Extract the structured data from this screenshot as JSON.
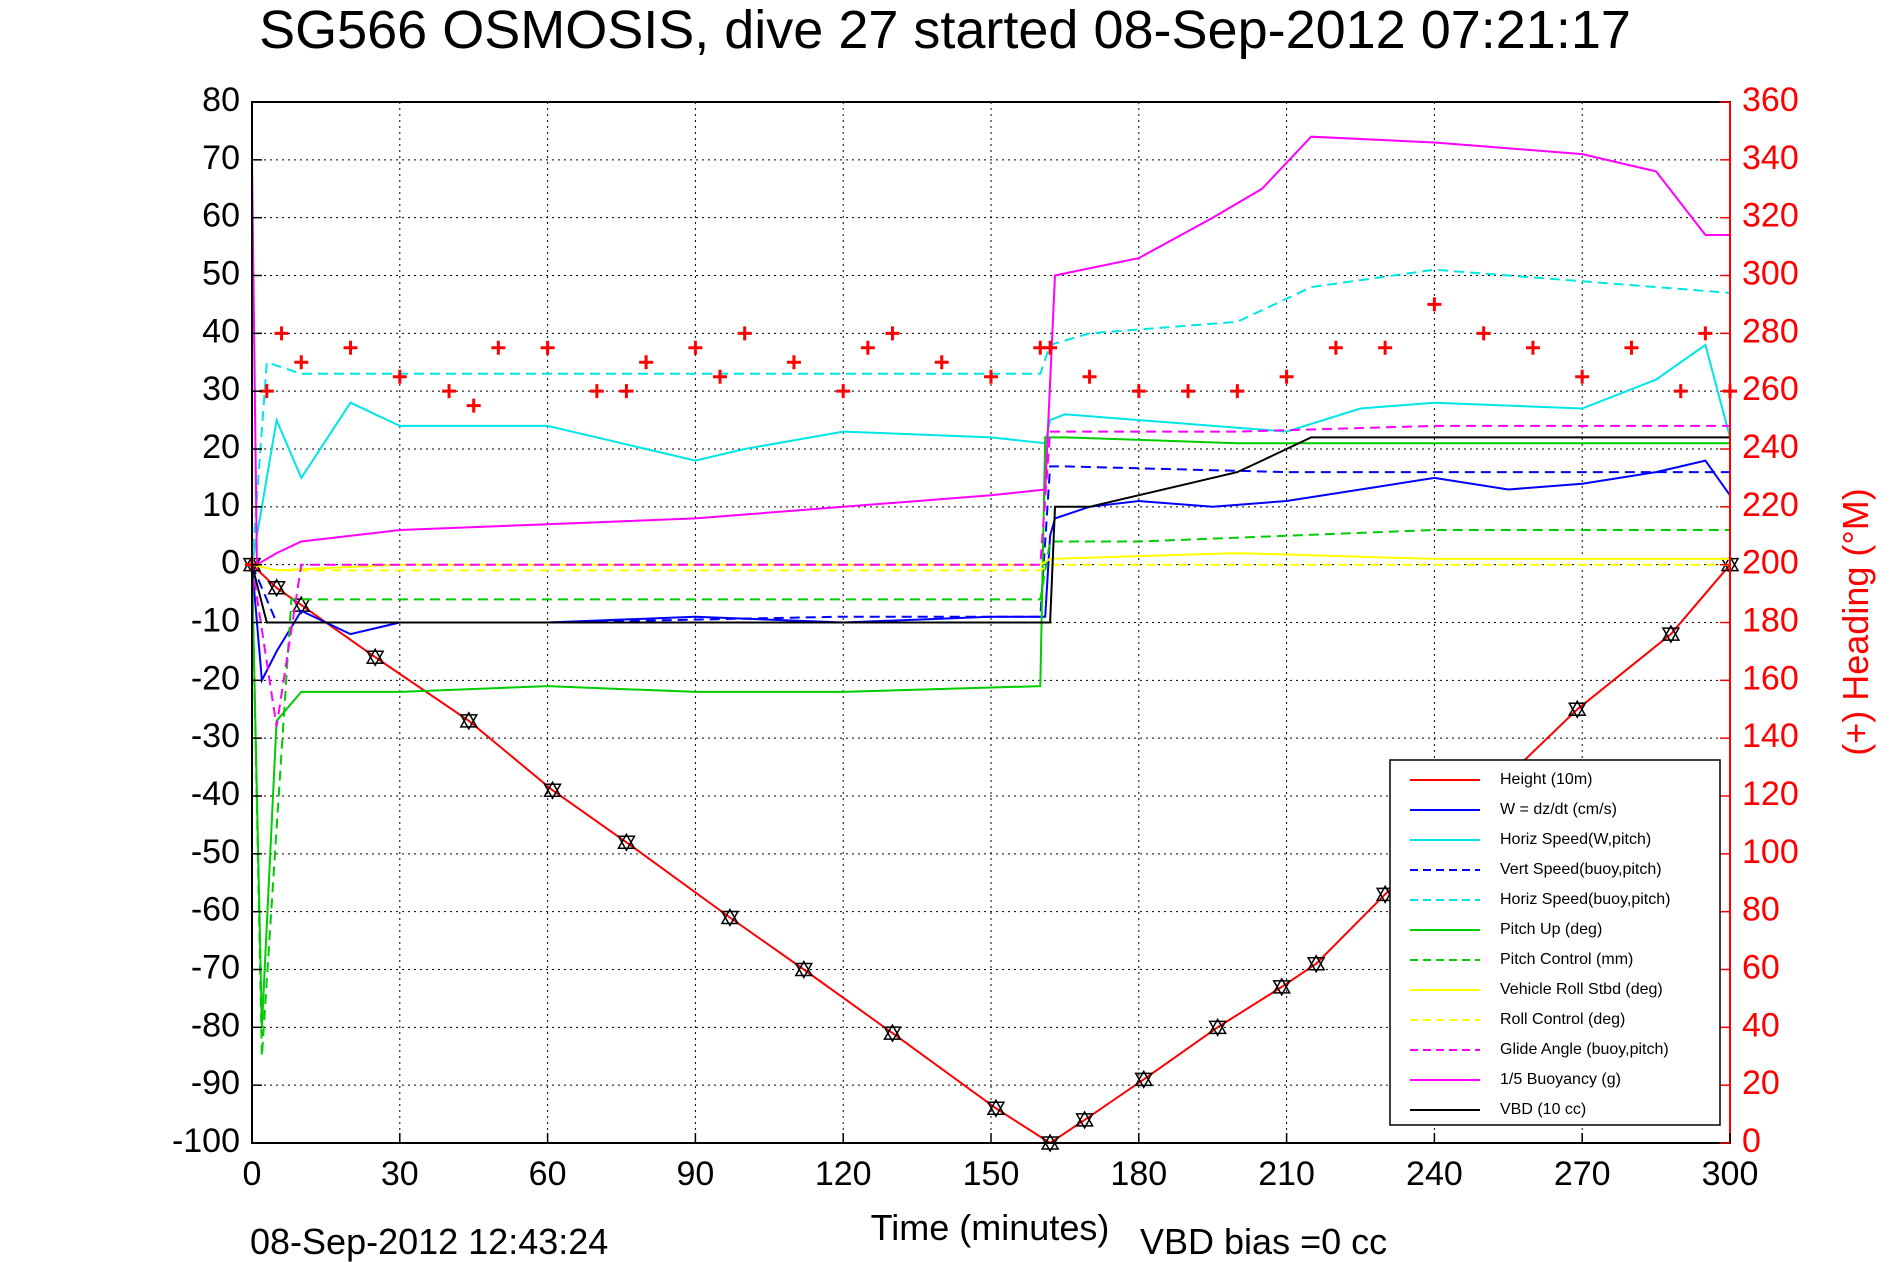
{
  "chart_data": {
    "type": "line",
    "title": "SG566 OSMOSIS, dive 27 started 08-Sep-2012 07:21:17",
    "xlabel": "Time (minutes)",
    "ylabel": "",
    "y2label": "(+) Heading (°M)",
    "xlim": [
      0,
      300
    ],
    "ylim": [
      -100,
      80
    ],
    "y2lim": [
      0,
      360
    ],
    "x_ticks": [
      "0",
      "30",
      "60",
      "90",
      "120",
      "150",
      "180",
      "210",
      "240",
      "270",
      "300"
    ],
    "y_ticks": [
      "80",
      "70",
      "60",
      "50",
      "40",
      "30",
      "20",
      "10",
      "0",
      "-10",
      "-20",
      "-30",
      "-40",
      "-50",
      "-60",
      "-70",
      "-80",
      "-90",
      "-100"
    ],
    "y2_ticks": [
      "360",
      "340",
      "320",
      "300",
      "280",
      "260",
      "240",
      "220",
      "200",
      "180",
      "160",
      "140",
      "120",
      "100",
      "80",
      "60",
      "40",
      "20",
      "0"
    ],
    "grid": true,
    "legend_position": "bottom-right",
    "footer_timestamp": "08-Sep-2012 12:43:24",
    "footer_note": "VBD bias =0 cc",
    "series": [
      {
        "name": "Height (10m)",
        "color": "#ff0000",
        "style": "solid",
        "x": [
          0,
          5,
          10,
          25,
          44,
          61,
          76,
          97,
          112,
          130,
          151,
          162,
          169,
          181,
          196,
          209,
          216,
          230,
          269,
          288,
          300
        ],
        "y": [
          0,
          -4,
          -7,
          -16,
          -27,
          -39,
          -48,
          -61,
          -70,
          -81,
          -94,
          -100,
          -96,
          -89,
          -80,
          -73,
          -69,
          -57,
          -25,
          -12,
          0
        ]
      },
      {
        "name": "W = dz/dt (cm/s)",
        "color": "#0000ff",
        "style": "solid",
        "x": [
          0,
          2,
          5,
          10,
          20,
          30,
          60,
          90,
          120,
          150,
          161,
          162,
          163,
          170,
          180,
          195,
          210,
          225,
          240,
          255,
          270,
          285,
          295,
          300
        ],
        "y": [
          0,
          -20,
          -15,
          -8,
          -12,
          -10,
          -10,
          -9,
          -10,
          -9,
          -9,
          5,
          8,
          10,
          11,
          10,
          11,
          13,
          15,
          13,
          14,
          16,
          18,
          12
        ]
      },
      {
        "name": "Horiz Speed(W,pitch)",
        "color": "#00e5e5",
        "style": "solid",
        "x": [
          0,
          5,
          10,
          20,
          30,
          60,
          90,
          100,
          120,
          150,
          161,
          162,
          165,
          180,
          210,
          225,
          240,
          270,
          285,
          295,
          300
        ],
        "y": [
          0,
          25,
          15,
          28,
          24,
          24,
          18,
          20,
          23,
          22,
          21,
          25,
          26,
          25,
          23,
          27,
          28,
          27,
          32,
          38,
          22
        ]
      },
      {
        "name": "Vert Speed(buoy,pitch)",
        "color": "#0000ff",
        "style": "dashed",
        "x": [
          0,
          5,
          10,
          60,
          120,
          160,
          162,
          165,
          210,
          240,
          300
        ],
        "y": [
          0,
          -10,
          -10,
          -10,
          -9,
          -9,
          17,
          17,
          16,
          16,
          16
        ]
      },
      {
        "name": "Horiz Speed(buoy,pitch)",
        "color": "#00e5e5",
        "style": "dashed",
        "x": [
          0,
          3,
          10,
          60,
          160,
          162,
          170,
          200,
          215,
          240,
          270,
          300
        ],
        "y": [
          0,
          35,
          33,
          33,
          33,
          38,
          40,
          42,
          48,
          51,
          49,
          47
        ]
      },
      {
        "name": "Pitch Up (deg)",
        "color": "#00cc00",
        "style": "solid",
        "x": [
          0,
          2,
          5,
          10,
          30,
          60,
          90,
          120,
          160,
          161,
          165,
          200,
          240,
          300
        ],
        "y": [
          0,
          -80,
          -27,
          -22,
          -22,
          -21,
          -22,
          -22,
          -21,
          22,
          22,
          21,
          21,
          21
        ]
      },
      {
        "name": "Pitch Control (mm)",
        "color": "#00cc00",
        "style": "dashed",
        "x": [
          0,
          2,
          8,
          60,
          120,
          160,
          162,
          180,
          210,
          240,
          300
        ],
        "y": [
          0,
          -85,
          -6,
          -6,
          -6,
          -6,
          4,
          4,
          5,
          6,
          6
        ]
      },
      {
        "name": "Vehicle Roll Stbd (deg)",
        "color": "#ffff00",
        "style": "solid",
        "x": [
          0,
          5,
          30,
          60,
          90,
          120,
          160,
          162,
          200,
          240,
          270,
          300
        ],
        "y": [
          0,
          -1,
          0,
          0,
          0,
          0,
          0,
          1,
          2,
          1,
          1,
          1
        ]
      },
      {
        "name": "Roll Control (deg)",
        "color": "#ffff00",
        "style": "dashed",
        "x": [
          0,
          5,
          160,
          162,
          300
        ],
        "y": [
          0,
          -1,
          -1,
          0,
          0
        ]
      },
      {
        "name": "Glide Angle (buoy,pitch)",
        "color": "#ff00ff",
        "style": "dashed",
        "x": [
          0,
          5,
          10,
          160,
          162,
          200,
          240,
          300
        ],
        "y": [
          0,
          -28,
          0,
          0,
          23,
          23,
          24,
          24
        ]
      },
      {
        "name": "1/5 Buoyancy (g)",
        "color": "#ff00ff",
        "style": "solid",
        "x": [
          0,
          1,
          5,
          10,
          30,
          60,
          90,
          120,
          150,
          161,
          163,
          180,
          195,
          205,
          215,
          240,
          270,
          285,
          295,
          300
        ],
        "y": [
          70,
          0,
          2,
          4,
          6,
          7,
          8,
          10,
          12,
          13,
          50,
          53,
          60,
          65,
          74,
          73,
          71,
          68,
          57,
          57
        ]
      },
      {
        "name": "VBD (10 cc)",
        "color": "#000000",
        "style": "solid",
        "x": [
          0,
          3,
          8,
          60,
          160,
          162,
          163,
          170,
          190,
          200,
          205,
          215,
          300
        ],
        "y": [
          0,
          -10,
          -10,
          -10,
          -10,
          -10,
          10,
          10,
          14,
          16,
          18,
          22,
          22
        ]
      },
      {
        "name": "(+) Heading (°M)",
        "color": "#ff0000",
        "style": "markers",
        "axis": "right",
        "x": [
          0,
          3,
          6,
          10,
          20,
          30,
          40,
          45,
          50,
          60,
          70,
          76,
          80,
          90,
          95,
          100,
          110,
          120,
          125,
          130,
          140,
          150,
          160,
          162,
          170,
          180,
          190,
          200,
          210,
          220,
          230,
          240,
          250,
          260,
          270,
          280,
          290,
          295,
          300
        ],
        "y": [
          200,
          260,
          280,
          270,
          275,
          265,
          260,
          255,
          275,
          275,
          260,
          260,
          270,
          275,
          265,
          280,
          270,
          260,
          275,
          280,
          270,
          265,
          275,
          275,
          265,
          260,
          260,
          260,
          265,
          275,
          275,
          290,
          280,
          275,
          265,
          275,
          260,
          280,
          260
        ]
      }
    ]
  }
}
